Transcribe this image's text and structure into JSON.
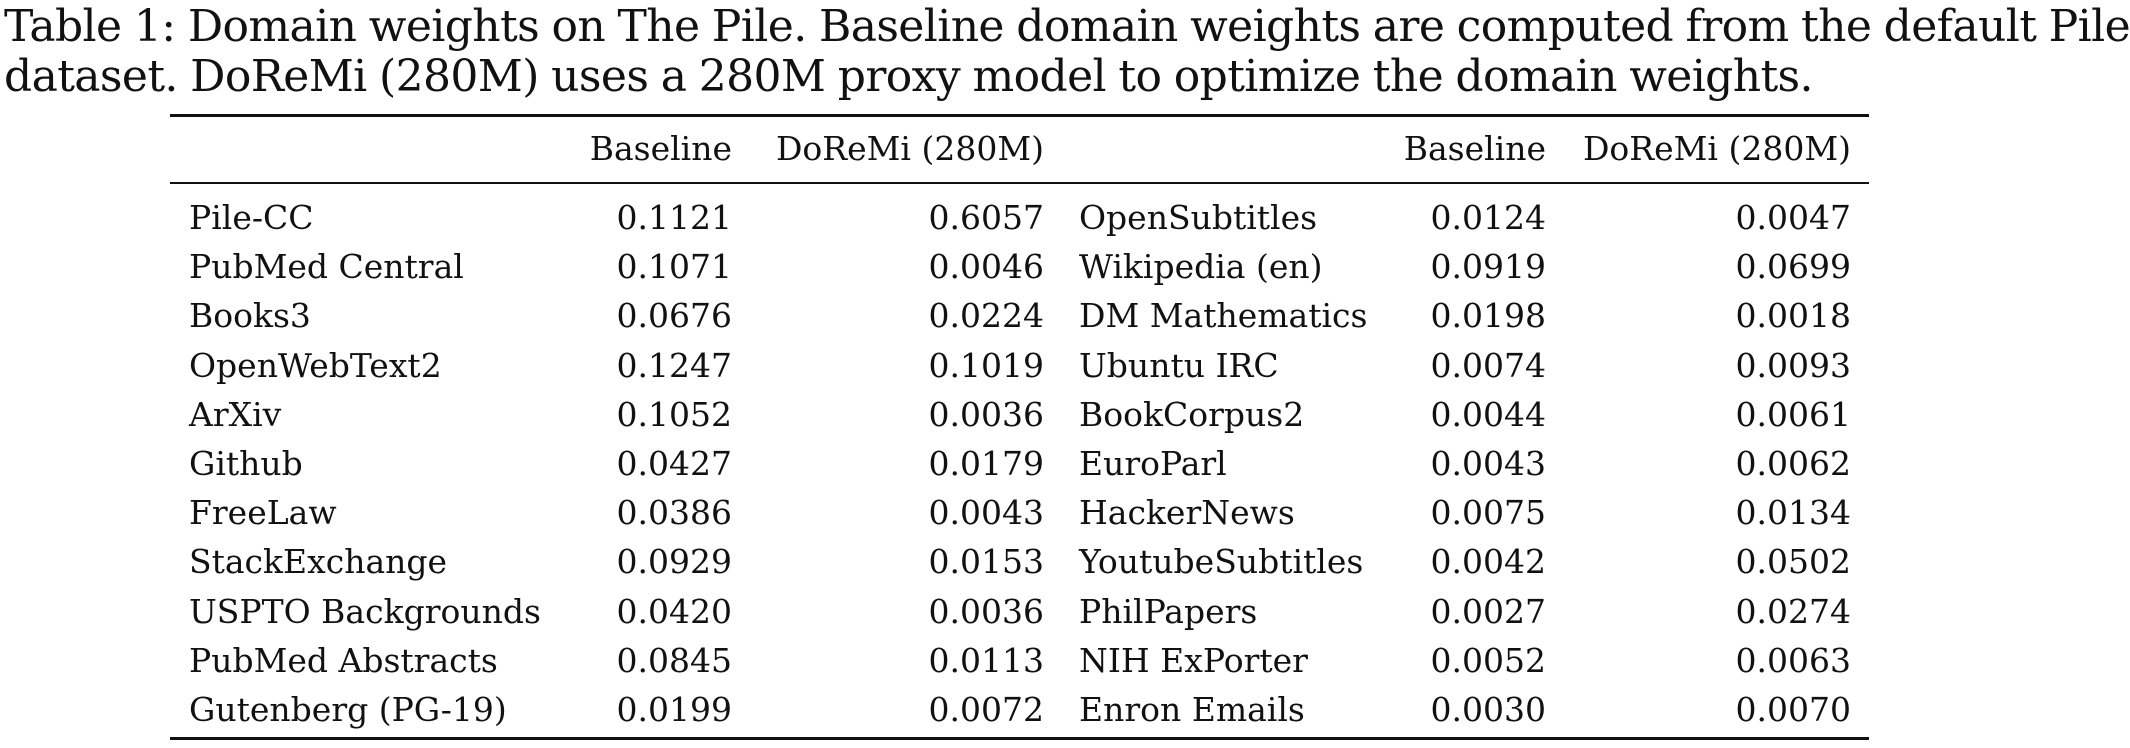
{
  "caption": {
    "line1": "Table 1: Domain weights on The Pile. Baseline domain weights are computed from the default Pile",
    "line2": "dataset. DoReMi (280M) uses a 280M proxy model to optimize the domain weights."
  },
  "table": {
    "headers": {
      "name": "",
      "baseline": "Baseline",
      "doremi": "DoReMi (280M)"
    },
    "left_rows": [
      {
        "domain": "Pile-CC",
        "baseline": "0.1121",
        "doremi": "0.6057"
      },
      {
        "domain": "PubMed Central",
        "baseline": "0.1071",
        "doremi": "0.0046"
      },
      {
        "domain": "Books3",
        "baseline": "0.0676",
        "doremi": "0.0224"
      },
      {
        "domain": "OpenWebText2",
        "baseline": "0.1247",
        "doremi": "0.1019"
      },
      {
        "domain": "ArXiv",
        "baseline": "0.1052",
        "doremi": "0.0036"
      },
      {
        "domain": "Github",
        "baseline": "0.0427",
        "doremi": "0.0179"
      },
      {
        "domain": "FreeLaw",
        "baseline": "0.0386",
        "doremi": "0.0043"
      },
      {
        "domain": "StackExchange",
        "baseline": "0.0929",
        "doremi": "0.0153"
      },
      {
        "domain": "USPTO Backgrounds",
        "baseline": "0.0420",
        "doremi": "0.0036"
      },
      {
        "domain": "PubMed Abstracts",
        "baseline": "0.0845",
        "doremi": "0.0113"
      },
      {
        "domain": "Gutenberg (PG-19)",
        "baseline": "0.0199",
        "doremi": "0.0072"
      }
    ],
    "right_rows": [
      {
        "domain": "OpenSubtitles",
        "baseline": "0.0124",
        "doremi": "0.0047"
      },
      {
        "domain": "Wikipedia (en)",
        "baseline": "0.0919",
        "doremi": "0.0699"
      },
      {
        "domain": "DM Mathematics",
        "baseline": "0.0198",
        "doremi": "0.0018"
      },
      {
        "domain": "Ubuntu IRC",
        "baseline": "0.0074",
        "doremi": "0.0093"
      },
      {
        "domain": "BookCorpus2",
        "baseline": "0.0044",
        "doremi": "0.0061"
      },
      {
        "domain": "EuroParl",
        "baseline": "0.0043",
        "doremi": "0.0062"
      },
      {
        "domain": "HackerNews",
        "baseline": "0.0075",
        "doremi": "0.0134"
      },
      {
        "domain": "YoutubeSubtitles",
        "baseline": "0.0042",
        "doremi": "0.0502"
      },
      {
        "domain": "PhilPapers",
        "baseline": "0.0027",
        "doremi": "0.0274"
      },
      {
        "domain": "NIH ExPorter",
        "baseline": "0.0052",
        "doremi": "0.0063"
      },
      {
        "domain": "Enron Emails",
        "baseline": "0.0030",
        "doremi": "0.0070"
      }
    ]
  }
}
